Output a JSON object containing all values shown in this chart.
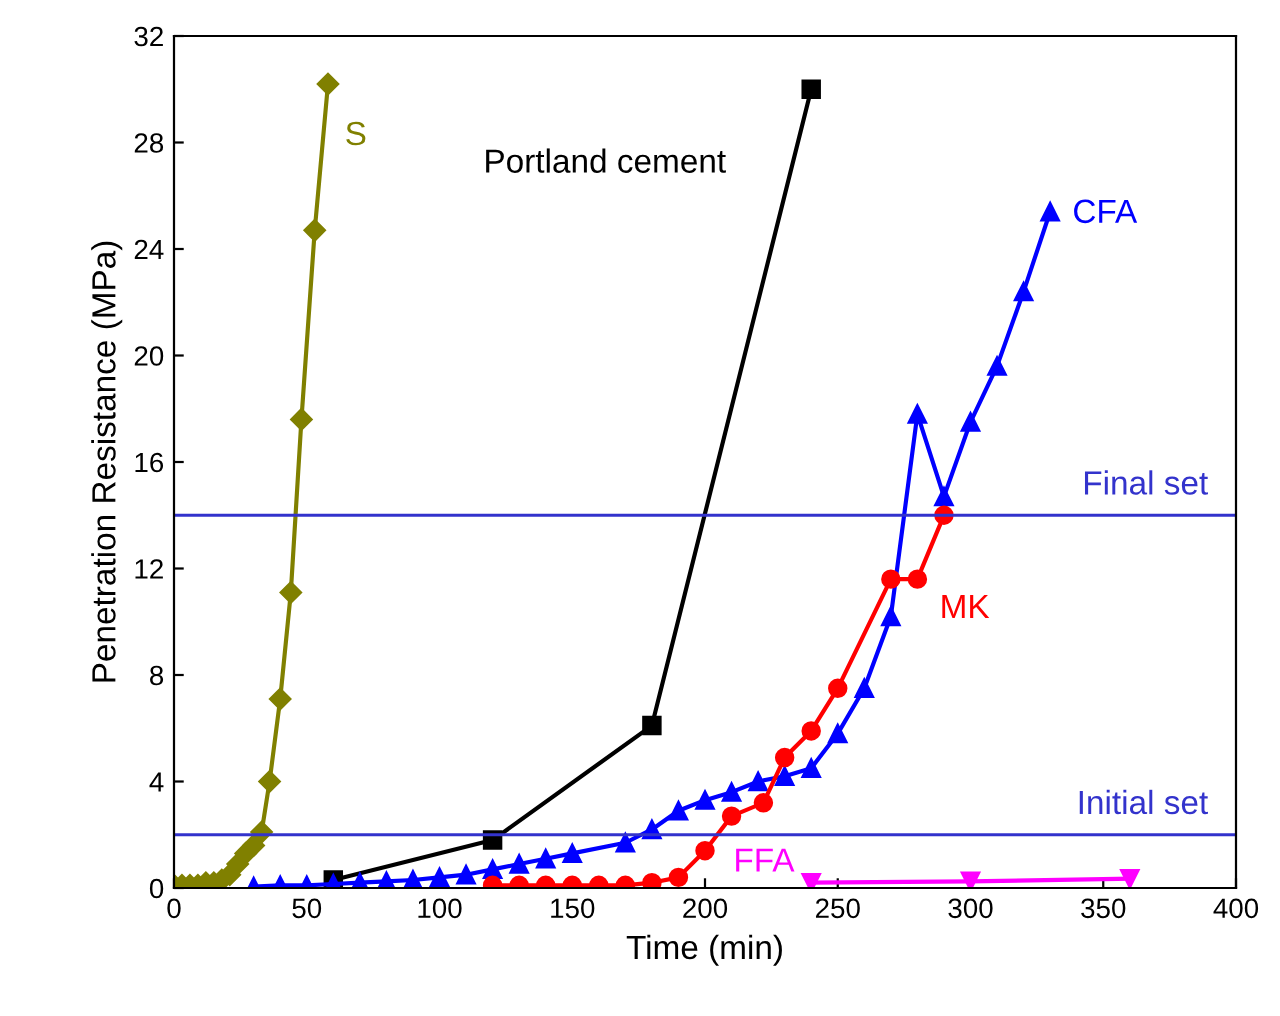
{
  "chart_data": {
    "type": "line",
    "xlabel": "Time (min)",
    "ylabel": "Penetration Resistance (MPa)",
    "xlim": [
      0,
      400
    ],
    "xticks": [
      0,
      50,
      100,
      150,
      200,
      250,
      300,
      350,
      400
    ],
    "ylim": [
      0,
      32
    ],
    "yticks": [
      0,
      4,
      8,
      12,
      16,
      20,
      24,
      28,
      32
    ],
    "grid": false,
    "legend": false,
    "line_style": "solid",
    "series": [
      {
        "name": "S",
        "color": "#808000",
        "marker": "diamond",
        "x": [
          0,
          3,
          6,
          9,
          12,
          15,
          18,
          21,
          24,
          27,
          30,
          33,
          36,
          40,
          44,
          48,
          53,
          58
        ],
        "values": [
          0.1,
          0.1,
          0.1,
          0.1,
          0.2,
          0.2,
          0.3,
          0.5,
          0.9,
          1.3,
          1.6,
          2.1,
          4.0,
          7.1,
          11.1,
          17.6,
          24.7,
          30.2
        ]
      },
      {
        "name": "Portland cement",
        "color": "#000000",
        "marker": "square",
        "x": [
          60,
          120,
          180,
          240
        ],
        "values": [
          0.3,
          1.8,
          6.1,
          30.0
        ]
      },
      {
        "name": "CFA",
        "color": "#0000ff",
        "marker": "triangle",
        "x": [
          30,
          40,
          50,
          60,
          70,
          80,
          90,
          100,
          110,
          120,
          130,
          140,
          150,
          170,
          180,
          190,
          200,
          210,
          220,
          230,
          240,
          250,
          260,
          270,
          280,
          290,
          300,
          310,
          320,
          330
        ],
        "values": [
          0.05,
          0.1,
          0.1,
          0.15,
          0.2,
          0.25,
          0.3,
          0.4,
          0.5,
          0.7,
          0.9,
          1.1,
          1.3,
          1.7,
          2.2,
          2.9,
          3.3,
          3.6,
          4.0,
          4.2,
          4.5,
          5.8,
          7.5,
          10.2,
          17.8,
          14.7,
          17.5,
          19.6,
          22.4,
          25.4
        ]
      },
      {
        "name": "MK",
        "color": "#ff0000",
        "marker": "circle",
        "x": [
          120,
          130,
          140,
          150,
          160,
          170,
          180,
          190,
          200,
          210,
          222,
          230,
          240,
          250,
          270,
          280,
          290
        ],
        "values": [
          0.1,
          0.1,
          0.1,
          0.1,
          0.1,
          0.1,
          0.2,
          0.4,
          1.4,
          2.7,
          3.2,
          4.9,
          5.9,
          7.5,
          11.6,
          11.6,
          14.0
        ]
      },
      {
        "name": "FFA",
        "color": "#ff00ff",
        "marker": "triangle_down",
        "x": [
          240,
          300,
          360
        ],
        "values": [
          0.2,
          0.25,
          0.35
        ]
      }
    ],
    "ref_lines": [
      {
        "axis": "y",
        "value": 2,
        "label": "Initial set",
        "color": "#3333cc"
      },
      {
        "axis": "y",
        "value": 14,
        "label": "Final set",
        "color": "#3333cc"
      }
    ]
  }
}
